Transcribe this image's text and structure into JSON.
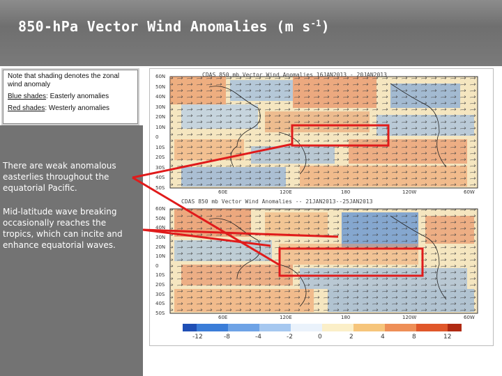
{
  "header": {
    "title_main": "850-hPa Vector Wind Anomalies  (m s",
    "title_sup": "-1",
    "title_end": ")"
  },
  "note": {
    "line1": "Note that shading denotes the zonal wind anomaly",
    "blue_label": "Blue shades",
    "blue_text": ": Easterly anomalies",
    "red_label": "Red shades",
    "red_text": ": Westerly anomalies"
  },
  "annotations": {
    "easterlies": "There are weak anomalous easterlies throughout the equatorial Pacific.",
    "wave_breaking": "Mid-latitude wave breaking occasionally reaches the tropics, which can incite and enhance equatorial waves."
  },
  "maps": {
    "top_title": "CDAS  850  mb  Vector  Wind  Anomalies         16JAN2013  -  20JAN2013",
    "bottom_title": "CDAS  850  mb  Vector  Wind  Anomalies  --  21JAN2013--25JAN2013",
    "lat_labels": [
      "60N",
      "50N",
      "40N",
      "30N",
      "20N",
      "10N",
      "0",
      "10S",
      "20S",
      "30S",
      "40S",
      "50S"
    ],
    "lon_labels": [
      "60E",
      "120E",
      "180",
      "120W",
      "60W"
    ],
    "colorbar_ticks": [
      "-12",
      "-8",
      "-4",
      "-2",
      "0",
      "2",
      "4",
      "8",
      "12"
    ],
    "colors": {
      "easterly": "#3b7dd8",
      "westerly": "#e0572a",
      "highlight_box": "#e01b1b"
    }
  }
}
